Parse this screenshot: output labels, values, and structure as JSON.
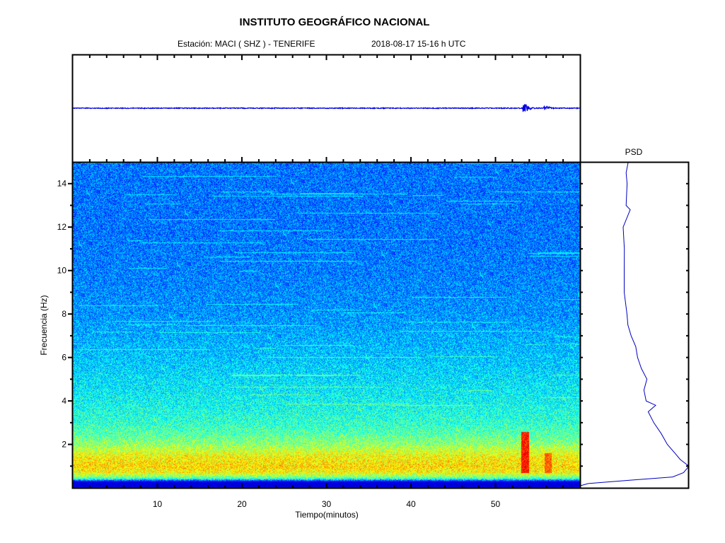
{
  "header": {
    "title": "INSTITUTO GEOGRÁFICO NACIONAL",
    "station": "Estación:  MACI ( SHZ ) - TENERIFE",
    "datetime": "2018-08-17  15-16 h UTC"
  },
  "chart_data": [
    {
      "type": "line",
      "name": "seismogram",
      "xlabel": "",
      "ylabel": "",
      "xlim": [
        0,
        60
      ],
      "events_min": [
        53.5,
        56.0
      ],
      "event_relative_amplitude": [
        1.0,
        0.4
      ],
      "color": "#0000e0"
    },
    {
      "type": "heatmap",
      "name": "spectrogram",
      "xlabel": "Tiempo(minutos)",
      "ylabel": "Frecuencia  (Hz)",
      "xlim": [
        0,
        60
      ],
      "ylim": [
        0,
        15
      ],
      "x_ticks": [
        10,
        20,
        30,
        40,
        50
      ],
      "y_ticks": [
        2,
        4,
        6,
        8,
        10,
        12,
        14
      ],
      "colormap": "jet",
      "intensity_profile": {
        "freq_hz": [
          0,
          0.3,
          0.45,
          0.7,
          1.0,
          1.5,
          2.0,
          2.5,
          3,
          4,
          5,
          6,
          8,
          10,
          12,
          15
        ],
        "level": [
          0.08,
          0.1,
          0.45,
          0.62,
          0.66,
          0.62,
          0.52,
          0.46,
          0.42,
          0.38,
          0.35,
          0.32,
          0.27,
          0.25,
          0.24,
          0.24
        ]
      },
      "events": [
        {
          "time_min": 53.5,
          "freq_range_hz": [
            0.7,
            2.6
          ],
          "level": 0.85
        },
        {
          "time_min": 56.2,
          "freq_range_hz": [
            0.7,
            1.6
          ],
          "level": 0.78
        }
      ]
    },
    {
      "type": "line",
      "name": "psd",
      "title": "PSD",
      "ylim": [
        0,
        15
      ],
      "freq_hz": [
        0.1,
        0.2,
        0.35,
        0.5,
        0.7,
        1.0,
        1.3,
        1.6,
        2.0,
        2.5,
        3.0,
        3.5,
        3.8,
        4.0,
        4.5,
        5.0,
        5.5,
        6.0,
        6.5,
        7.0,
        7.5,
        8.0,
        9.0,
        10.0,
        11.0,
        12.0,
        12.8,
        13.0,
        14.0,
        14.5,
        15.0
      ],
      "relative_power": [
        0.0,
        0.07,
        0.45,
        0.85,
        0.95,
        1.0,
        0.92,
        0.87,
        0.8,
        0.74,
        0.68,
        0.62,
        0.68,
        0.6,
        0.58,
        0.62,
        0.55,
        0.52,
        0.5,
        0.46,
        0.44,
        0.42,
        0.41,
        0.4,
        0.41,
        0.4,
        0.45,
        0.41,
        0.42,
        0.43,
        0.44
      ],
      "color": "#0000c0"
    }
  ]
}
